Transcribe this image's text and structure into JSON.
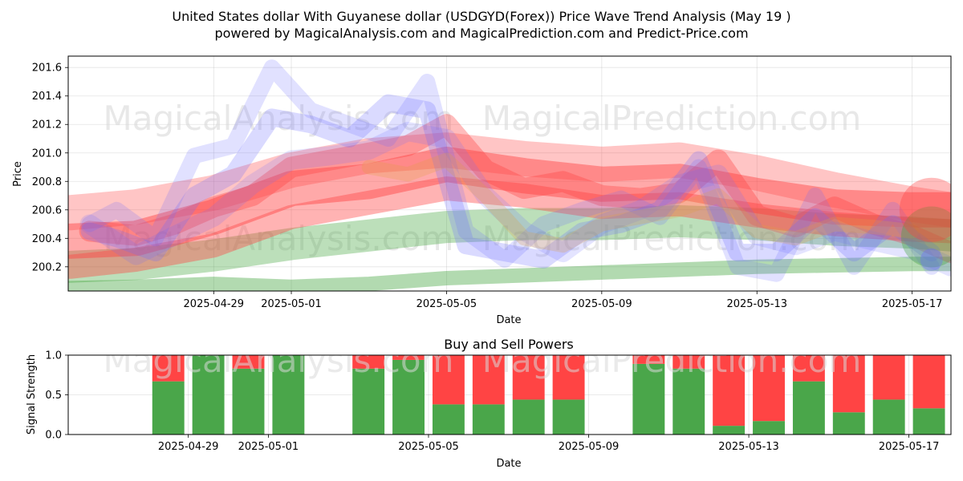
{
  "figure": {
    "title_line1": "United States dollar With Guyanese dollar (USDGYD(Forex)) Price Wave Trend Analysis (May 19 )",
    "title_line2": "powered by MagicalAnalysis.com and MagicalPrediction.com and Predict-Price.com",
    "watermark_left": "MagicalAnalysis.com",
    "watermark_right": "MagicalPrediction.com"
  },
  "colors": {
    "green_band": "#3fa33a",
    "red_band": "#ff4040",
    "blue_band": "#6a6aff",
    "bar_buy": "#4aa64a",
    "bar_sell": "#ff4444",
    "watermark": "#cccccc"
  },
  "chart_data": [
    {
      "type": "line",
      "title": "",
      "xlabel": "Date",
      "ylabel": "Price",
      "ylim": [
        200.03,
        201.68
      ],
      "y_ticks": [
        200.2,
        200.4,
        200.6,
        200.8,
        201.0,
        201.2,
        201.4,
        201.6
      ],
      "y_tick_labels": [
        "200.2",
        "200.4",
        "200.6",
        "200.8",
        "201.0",
        "201.2",
        "201.4",
        "201.6"
      ],
      "x_tick_labels": [
        "2025-04-29",
        "2025-05-01",
        "2025-05-05",
        "2025-05-09",
        "2025-05-13",
        "2025-05-17"
      ],
      "x_tick_days": [
        2,
        4,
        8,
        12,
        16,
        20
      ],
      "x_range_days": [
        -1.75,
        21.0
      ],
      "grid": true,
      "series": [
        {
          "name": "green-band-lower",
          "color": "green",
          "alpha": 0.4,
          "width": 18,
          "x": [
            -1.7,
            0,
            2,
            4,
            6,
            8,
            10,
            12,
            14,
            16,
            18,
            20,
            21
          ],
          "y": [
            200.05,
            200.06,
            200.08,
            200.06,
            200.08,
            200.12,
            200.14,
            200.16,
            200.18,
            200.2,
            200.21,
            200.22,
            200.22
          ]
        },
        {
          "name": "green-band-mid",
          "color": "green",
          "alpha": 0.35,
          "width": 40,
          "x": [
            -1.7,
            0,
            2,
            4,
            6,
            8,
            10,
            12,
            14,
            16,
            18,
            20,
            21
          ],
          "y": [
            200.2,
            200.22,
            200.28,
            200.36,
            200.42,
            200.48,
            200.5,
            200.5,
            200.52,
            200.5,
            200.46,
            200.44,
            200.42
          ]
        },
        {
          "name": "red-band-wide",
          "color": "red",
          "alpha": 0.3,
          "width": 44,
          "x": [
            -1.7,
            0,
            2,
            4,
            6,
            8,
            10,
            12,
            14,
            16,
            18,
            20,
            21
          ],
          "y": [
            200.58,
            200.62,
            200.72,
            200.88,
            200.98,
            201.02,
            200.96,
            200.92,
            200.95,
            200.86,
            200.74,
            200.64,
            200.6
          ]
        },
        {
          "name": "red-band-main",
          "color": "red",
          "alpha": 0.45,
          "width": 44,
          "x": [
            -1.7,
            0,
            2,
            4,
            6,
            8,
            10,
            12,
            14,
            16,
            18,
            20,
            21
          ],
          "y": [
            200.38,
            200.4,
            200.55,
            200.75,
            200.8,
            200.92,
            200.84,
            200.78,
            200.8,
            200.7,
            200.62,
            200.6,
            200.6
          ]
        },
        {
          "name": "red-band-low",
          "color": "red",
          "alpha": 0.4,
          "width": 30,
          "x": [
            -1.7,
            0,
            2,
            4,
            6,
            8,
            10,
            12,
            14,
            16,
            18,
            20,
            21
          ],
          "y": [
            200.2,
            200.25,
            200.35,
            200.55,
            200.65,
            200.75,
            200.7,
            200.62,
            200.64,
            200.56,
            200.5,
            200.46,
            200.45
          ]
        },
        {
          "name": "red-wave",
          "color": "red",
          "alpha": 0.35,
          "width": 26,
          "x": [
            -1.2,
            0,
            1,
            2,
            3,
            4,
            5,
            6,
            7,
            8,
            9,
            10,
            11,
            12,
            13,
            14,
            15,
            16,
            17,
            18,
            19,
            20,
            21
          ],
          "y": [
            200.45,
            200.42,
            200.5,
            200.62,
            200.7,
            200.9,
            200.95,
            201.0,
            201.05,
            201.2,
            200.88,
            200.75,
            200.8,
            200.7,
            200.68,
            200.72,
            200.95,
            200.56,
            200.48,
            200.62,
            200.5,
            200.42,
            200.3
          ]
        },
        {
          "name": "blue-wave-high",
          "color": "blue",
          "alpha": 0.2,
          "width": 20,
          "x": [
            -1.2,
            -0.5,
            0.5,
            1.5,
            2.5,
            3.5,
            4.5,
            5.5,
            6.5,
            7.5,
            8.5,
            9.5,
            10.5,
            11.5,
            12.5,
            13.5,
            14.5,
            15.5,
            16.5,
            17.5,
            18.5,
            19.5,
            20.5
          ],
          "y": [
            200.5,
            200.6,
            200.4,
            200.98,
            201.05,
            201.6,
            201.3,
            201.2,
            201.1,
            201.5,
            200.45,
            200.25,
            200.5,
            200.6,
            200.68,
            200.55,
            200.9,
            200.2,
            200.15,
            200.7,
            200.2,
            200.6,
            200.2
          ]
        },
        {
          "name": "blue-wave-mid",
          "color": "blue",
          "alpha": 0.25,
          "width": 22,
          "x": [
            -1.2,
            -0.5,
            0.5,
            1.5,
            2.5,
            3.5,
            4.5,
            5.5,
            6.5,
            7.5,
            8.5,
            9.5,
            10.5,
            11.5,
            12.5,
            13.5,
            14.5,
            15.5,
            16.5,
            17.5,
            18.5,
            19.5,
            20.5
          ],
          "y": [
            200.45,
            200.4,
            200.3,
            200.7,
            200.85,
            201.25,
            201.2,
            201.1,
            201.35,
            201.3,
            200.35,
            200.3,
            200.25,
            200.45,
            200.5,
            200.6,
            200.95,
            200.3,
            200.3,
            200.55,
            200.3,
            200.5,
            200.3
          ]
        },
        {
          "name": "blue-wave-low",
          "color": "blue",
          "alpha": 0.18,
          "width": 24,
          "x": [
            -1.2,
            0,
            1,
            2,
            3,
            4,
            5,
            6,
            7,
            8,
            9,
            10,
            11,
            12,
            13,
            14,
            15,
            16,
            17,
            18,
            19,
            20,
            21
          ],
          "y": [
            200.5,
            200.28,
            200.42,
            200.55,
            200.78,
            200.95,
            200.98,
            201.02,
            201.15,
            201.1,
            200.7,
            200.45,
            200.3,
            200.5,
            200.6,
            200.78,
            200.85,
            200.42,
            200.35,
            200.45,
            200.38,
            200.32,
            200.2
          ]
        },
        {
          "name": "orange-wave",
          "color": "orange",
          "alpha": 0.25,
          "width": 18,
          "x": [
            6,
            7,
            8,
            9,
            10,
            11,
            12,
            13,
            14,
            15,
            16,
            17,
            18,
            19,
            20
          ],
          "y": [
            200.9,
            200.85,
            200.95,
            200.7,
            200.4,
            200.35,
            200.5,
            200.55,
            200.6,
            200.7,
            200.45,
            200.4,
            200.5,
            200.48,
            200.45
          ]
        }
      ],
      "end_markers": [
        {
          "name": "end-green-dot",
          "color": "green",
          "x": 20.5,
          "y": 200.41,
          "r": 38
        },
        {
          "name": "end-red-dot",
          "color": "red",
          "x": 20.5,
          "y": 200.6,
          "r": 40
        },
        {
          "name": "end-blue-dot",
          "color": "blue",
          "x": 20.5,
          "y": 200.25,
          "r": 14
        }
      ]
    },
    {
      "type": "bar",
      "title": "Buy and Sell Powers",
      "xlabel": "Date",
      "ylabel": "Signal Strength",
      "ylim": [
        0,
        1
      ],
      "y_ticks": [
        0,
        0.5,
        1
      ],
      "y_tick_labels": [
        "0.0",
        "0.5",
        "1.0"
      ],
      "x_tick_labels": [
        "2025-04-29",
        "2025-05-01",
        "2025-05-05",
        "2025-05-09",
        "2025-05-13",
        "2025-05-17"
      ],
      "x_tick_days": [
        2,
        4,
        8,
        12,
        16,
        20
      ],
      "x_range_days": [
        -1.0,
        21.05
      ],
      "grid": true,
      "categories": [
        "2025-04-29",
        "2025-04-30",
        "2025-05-01",
        "2025-05-02",
        "2025-05-05",
        "2025-05-06",
        "2025-05-07",
        "2025-05-08",
        "2025-05-09",
        "2025-05-10",
        "2025-05-13",
        "2025-05-14",
        "2025-05-15",
        "2025-05-16",
        "2025-05-17",
        "2025-05-18",
        "2025-05-19",
        "2025-05-20"
      ],
      "days": [
        1.5,
        2.5,
        3.5,
        4.5,
        6.5,
        7.5,
        8.5,
        9.5,
        10.5,
        11.5,
        13.5,
        14.5,
        15.5,
        16.5,
        17.5,
        18.5,
        19.5,
        20.5
      ],
      "series": [
        {
          "name": "Buy",
          "values": [
            0.67,
            1.0,
            0.83,
            1.0,
            0.83,
            0.94,
            0.38,
            0.38,
            0.44,
            0.44,
            0.89,
            0.83,
            0.11,
            0.17,
            0.67,
            0.28,
            0.44,
            0.33
          ]
        },
        {
          "name": "Sell",
          "values": [
            0.33,
            0.0,
            0.17,
            0.0,
            0.17,
            0.06,
            0.62,
            0.62,
            0.56,
            0.56,
            0.11,
            0.17,
            0.89,
            0.83,
            0.33,
            0.72,
            0.56,
            0.67
          ]
        }
      ]
    }
  ]
}
